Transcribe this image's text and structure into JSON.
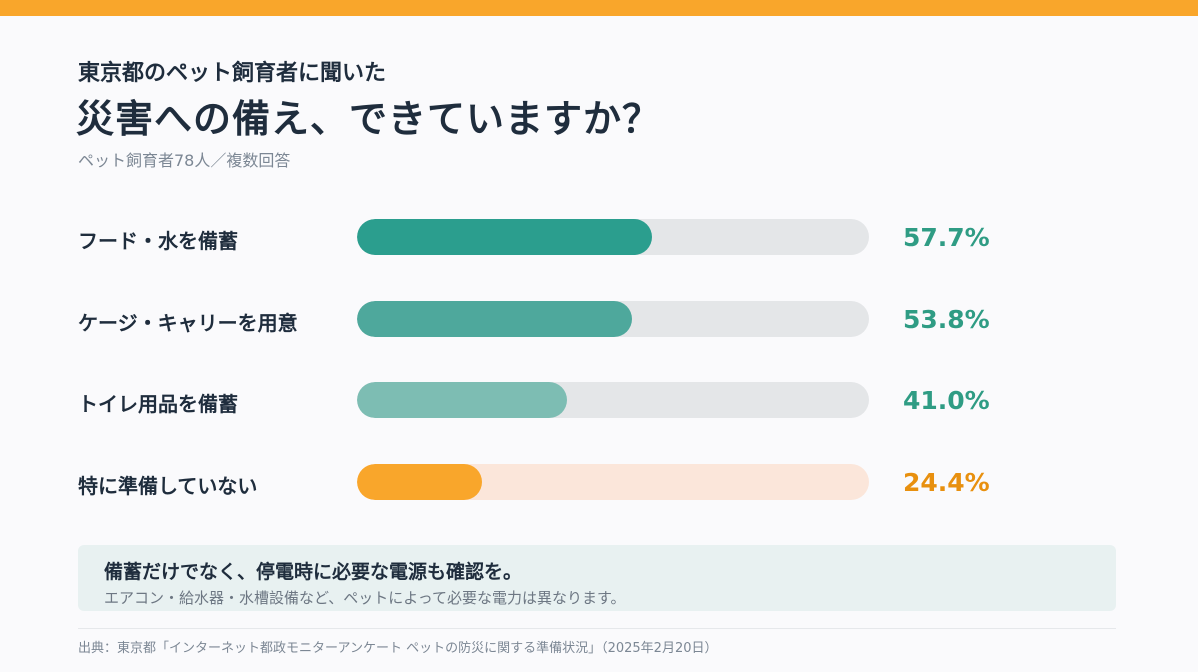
{
  "header": {
    "subtitle": "東京都のペット飼育者に聞いた",
    "title": "災害への備え、できていますか？",
    "note": "ペット飼育者78人／複数回答"
  },
  "colors": {
    "accent_orange": "#f9a62b",
    "teal_1": "#2b9e8e",
    "teal_2": "#4ea89c",
    "teal_3": "#7dbdb3",
    "value_teal": "#2f9c84",
    "value_orange": "#e8900f"
  },
  "chart_data": {
    "type": "bar",
    "orientation": "horizontal",
    "categories": [
      "フード・水を備蓄",
      "ケージ・キャリーを用意",
      "トイレ用品を備蓄",
      "特に準備していない"
    ],
    "values": [
      57.7,
      53.8,
      41.0,
      24.4
    ],
    "value_labels": [
      "57.7%",
      "53.8%",
      "41.0%",
      "24.4%"
    ],
    "xlim": [
      0,
      100
    ],
    "grid": false
  },
  "callout": {
    "title": "備蓄だけでなく、停電時に必要な電源も確認を。",
    "text": "エアコン・給水器・水槽設備など、ペットによって必要な電力は異なります。"
  },
  "source": "出典：東京都「インターネット都政モニターアンケート ペットの防災に関する準備状況」（2025年2月20日）"
}
